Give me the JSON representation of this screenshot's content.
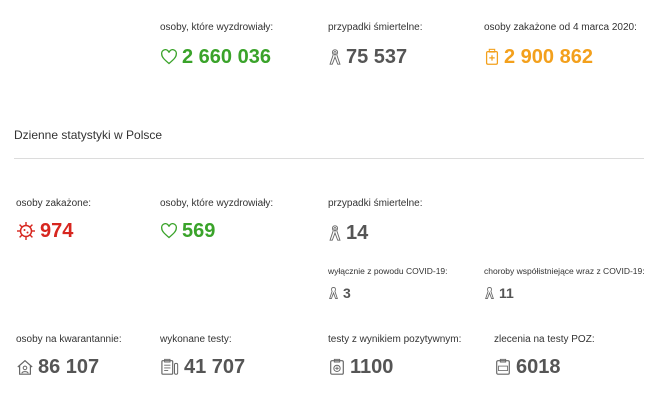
{
  "top": {
    "recovered": {
      "label": "osoby, które wyzdrowiały:",
      "value": "2 660 036"
    },
    "deaths": {
      "label": "przypadki śmiertelne:",
      "value": "75 537"
    },
    "infected_total": {
      "label": "osoby zakażone od 4 marca 2020:",
      "value": "2 900 862"
    }
  },
  "daily": {
    "title": "Dzienne statystyki w Polsce",
    "infected": {
      "label": "osoby zakażone:",
      "value": "974"
    },
    "recovered": {
      "label": "osoby, które wyzdrowiały:",
      "value": "569"
    },
    "deaths": {
      "label": "przypadki śmiertelne:",
      "value": "14"
    },
    "deaths_covid_only": {
      "label": "wyłącznie z powodu COVID-19:",
      "value": "3"
    },
    "deaths_comorbid": {
      "label": "choroby współistniejące wraz z COVID-19:",
      "value": "11"
    },
    "quarantine": {
      "label": "osoby na kwarantannie:",
      "value": "86 107"
    },
    "tests": {
      "label": "wykonane testy:",
      "value": "41 707"
    },
    "positive_tests": {
      "label": "testy z wynikiem pozytywnym:",
      "value": "1100"
    },
    "poz_orders": {
      "label": "zlecenia na testy POZ:",
      "value": "6018"
    }
  },
  "colors": {
    "green": "#3aa32a",
    "gray": "#555555",
    "orange": "#f3a01c",
    "red": "#d7261f"
  },
  "icons": [
    "heart-icon",
    "ribbon-icon",
    "test-kit-icon",
    "virus-icon",
    "house-person-icon",
    "clipboard-test-icon",
    "positive-test-icon",
    "poz-test-icon"
  ]
}
